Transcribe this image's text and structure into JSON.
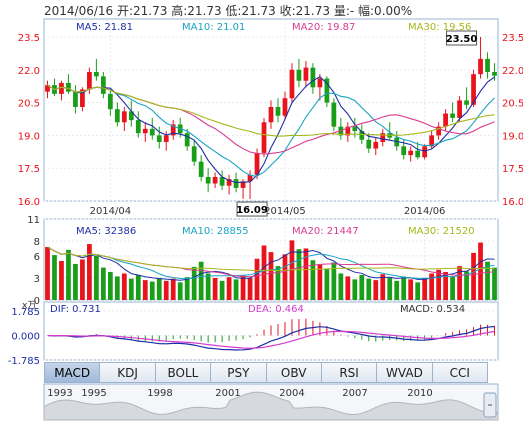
{
  "header": {
    "text": "2014/06/16 开:21.73 高:21.73 低:21.73 收:21.73 量:- 幅:0.00%"
  },
  "colors": {
    "up": "#e8131c",
    "down": "#1a9e1a",
    "ma5": "#1d2fa6",
    "ma10": "#19a3c4",
    "ma20": "#d93b8f",
    "ma30": "#a7b71c",
    "dif": "#1d2fa6",
    "dea": "#d63ad0"
  },
  "price_legend": [
    {
      "label": "MA5: 21.81",
      "color": "#1d2fa6"
    },
    {
      "label": "MA10: 21.01",
      "color": "#19a3c4"
    },
    {
      "label": "MA20: 19.87",
      "color": "#d93b8f"
    },
    {
      "label": "MA30: 19.56",
      "color": "#a7b71c"
    }
  ],
  "volume_legend": [
    {
      "label": "MA5: 32386",
      "color": "#1d2fa6"
    },
    {
      "label": "MA10: 28855",
      "color": "#19a3c4"
    },
    {
      "label": "MA20: 21447",
      "color": "#d93b8f"
    },
    {
      "label": "MA30: 21520",
      "color": "#a7b71c"
    }
  ],
  "macd_legend": {
    "dif": "DIF: 0.731",
    "dea": "DEA: 0.464",
    "macd": "MACD: 0.534"
  },
  "annotations": {
    "high": "23.50",
    "low": "16.09"
  },
  "volume_unit": "x万",
  "tabs": [
    "MACD",
    "KDJ",
    "BOLL",
    "PSY",
    "OBV",
    "RSI",
    "WVAD",
    "CCI"
  ],
  "overview_years": [
    "1993",
    "1995",
    "1998",
    "2001",
    "2004",
    "2007",
    "2010"
  ],
  "chart_data": [
    {
      "type": "candlestick",
      "x_labels": [
        "2014/04",
        "2014/05",
        "2014/06"
      ],
      "y_ticks": [
        "23.5",
        "22.0",
        "20.5",
        "19.0",
        "17.5",
        "16.0"
      ],
      "ylim": [
        16.0,
        23.5
      ],
      "candles": [
        [
          21.0,
          21.5,
          20.7,
          21.3
        ],
        [
          21.3,
          21.6,
          20.8,
          20.9
        ],
        [
          20.9,
          21.5,
          20.6,
          21.4
        ],
        [
          21.4,
          21.8,
          20.9,
          21.0
        ],
        [
          21.0,
          21.3,
          20.0,
          20.3
        ],
        [
          20.3,
          21.2,
          20.1,
          21.1
        ],
        [
          21.1,
          22.1,
          20.9,
          21.9
        ],
        [
          21.9,
          22.5,
          21.5,
          21.7
        ],
        [
          21.7,
          21.9,
          20.7,
          20.9
        ],
        [
          20.9,
          21.1,
          19.9,
          20.2
        ],
        [
          20.2,
          20.5,
          19.4,
          19.6
        ],
        [
          19.6,
          20.3,
          19.2,
          20.1
        ],
        [
          20.1,
          20.6,
          19.4,
          19.7
        ],
        [
          19.7,
          20.1,
          18.9,
          19.1
        ],
        [
          19.1,
          19.6,
          18.7,
          19.3
        ],
        [
          19.3,
          19.8,
          18.8,
          19.0
        ],
        [
          19.0,
          19.4,
          18.4,
          18.7
        ],
        [
          18.7,
          19.2,
          18.3,
          19.0
        ],
        [
          19.0,
          19.7,
          18.8,
          19.5
        ],
        [
          19.5,
          19.8,
          18.9,
          19.1
        ],
        [
          19.1,
          19.3,
          18.3,
          18.5
        ],
        [
          18.5,
          18.8,
          17.6,
          17.8
        ],
        [
          17.8,
          18.1,
          16.9,
          17.1
        ],
        [
          17.1,
          17.5,
          16.4,
          16.8
        ],
        [
          16.8,
          17.3,
          16.6,
          17.1
        ],
        [
          17.1,
          17.4,
          16.5,
          16.7
        ],
        [
          16.7,
          17.2,
          16.3,
          17.0
        ],
        [
          17.0,
          17.3,
          16.4,
          16.6
        ],
        [
          16.6,
          17.0,
          16.1,
          16.9
        ],
        [
          16.9,
          17.4,
          16.09,
          17.2
        ],
        [
          17.2,
          18.4,
          17.0,
          18.2
        ],
        [
          18.2,
          19.8,
          18.0,
          19.6
        ],
        [
          19.6,
          20.6,
          19.3,
          20.3
        ],
        [
          20.3,
          20.7,
          19.6,
          19.9
        ],
        [
          19.9,
          21.0,
          19.7,
          20.7
        ],
        [
          20.7,
          22.3,
          20.5,
          22.0
        ],
        [
          22.0,
          22.5,
          21.2,
          21.5
        ],
        [
          21.5,
          22.4,
          21.2,
          22.1
        ],
        [
          22.1,
          22.3,
          20.9,
          21.2
        ],
        [
          21.2,
          21.8,
          20.6,
          21.6
        ],
        [
          21.6,
          21.7,
          20.3,
          20.5
        ],
        [
          20.5,
          20.7,
          19.2,
          19.4
        ],
        [
          19.4,
          19.8,
          18.8,
          19.0
        ],
        [
          19.0,
          19.6,
          18.7,
          19.4
        ],
        [
          19.4,
          19.8,
          18.9,
          19.2
        ],
        [
          19.2,
          19.5,
          18.6,
          18.8
        ],
        [
          18.8,
          19.1,
          18.2,
          18.4
        ],
        [
          18.4,
          18.9,
          18.1,
          18.7
        ],
        [
          18.7,
          19.3,
          18.5,
          19.1
        ],
        [
          19.1,
          19.6,
          18.8,
          18.9
        ],
        [
          18.9,
          19.2,
          18.3,
          18.5
        ],
        [
          18.5,
          18.8,
          17.9,
          18.1
        ],
        [
          18.1,
          18.5,
          17.8,
          18.3
        ],
        [
          18.3,
          18.7,
          17.9,
          18.0
        ],
        [
          18.0,
          18.6,
          17.9,
          18.5
        ],
        [
          18.5,
          19.2,
          18.4,
          19.0
        ],
        [
          19.0,
          19.6,
          18.8,
          19.4
        ],
        [
          19.4,
          20.2,
          19.2,
          20.0
        ],
        [
          20.0,
          20.5,
          19.6,
          19.8
        ],
        [
          19.8,
          20.8,
          19.6,
          20.6
        ],
        [
          20.6,
          21.2,
          20.2,
          20.4
        ],
        [
          20.4,
          22.0,
          20.3,
          21.8
        ],
        [
          21.8,
          23.5,
          21.6,
          22.5
        ],
        [
          22.5,
          22.8,
          21.6,
          21.9
        ],
        [
          21.9,
          22.3,
          21.5,
          21.73
        ]
      ],
      "volume": {
        "ylim": [
          0,
          11
        ],
        "y_ticks": [
          "11",
          "8",
          "6",
          "3",
          "0"
        ],
        "values": [
          7.2,
          6.1,
          5.3,
          6.8,
          4.9,
          5.5,
          7.6,
          6.0,
          4.4,
          3.8,
          3.2,
          3.6,
          2.9,
          3.4,
          2.7,
          2.5,
          3.0,
          2.6,
          2.9,
          2.4,
          3.1,
          4.5,
          5.2,
          3.6,
          3.0,
          2.6,
          3.1,
          2.8,
          3.3,
          3.0,
          5.6,
          7.4,
          6.5,
          4.6,
          6.2,
          8.1,
          6.9,
          7.0,
          5.4,
          4.8,
          4.2,
          5.1,
          3.6,
          3.2,
          2.8,
          3.4,
          2.9,
          2.7,
          3.5,
          3.0,
          2.6,
          3.2,
          2.8,
          2.4,
          3.0,
          3.6,
          4.1,
          3.8,
          3.2,
          4.6,
          3.9,
          6.4,
          7.8,
          5.2,
          4.4
        ]
      },
      "macd": {
        "ylim": [
          -1.785,
          1.785
        ],
        "y_ticks": [
          "1.785",
          "0.000",
          "-1.785"
        ]
      }
    }
  ]
}
